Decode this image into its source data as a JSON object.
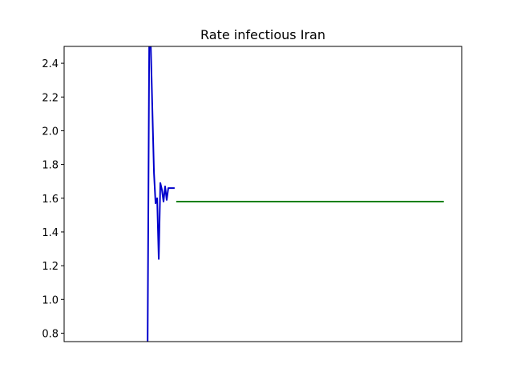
{
  "chart_data": {
    "type": "line",
    "title": "Rate infectious Iran",
    "xlabel": "",
    "ylabel": "",
    "xlim": [
      0,
      100
    ],
    "ylim": [
      0.75,
      2.5
    ],
    "x_ticks_visible": false,
    "y_ticks": [
      0.8,
      1.0,
      1.2,
      1.4,
      1.6,
      1.8,
      2.0,
      2.2,
      2.4
    ],
    "grid": false,
    "series": [
      {
        "color": "#0000cc",
        "x": [
          21.0,
          21.4,
          21.8,
          22.2,
          22.6,
          23.0,
          23.4,
          23.8,
          24.2,
          24.6,
          25.0,
          25.4,
          25.8,
          26.2,
          26.6,
          27.0,
          27.4,
          27.8
        ],
        "y": [
          0.75,
          2.5,
          2.5,
          2.12,
          1.75,
          1.57,
          1.6,
          1.24,
          1.69,
          1.65,
          1.58,
          1.67,
          1.59,
          1.66,
          1.66,
          1.66,
          1.66,
          1.66
        ]
      },
      {
        "color": "#008000",
        "x": [
          28.2,
          95.5
        ],
        "y": [
          1.58,
          1.58
        ]
      }
    ]
  }
}
